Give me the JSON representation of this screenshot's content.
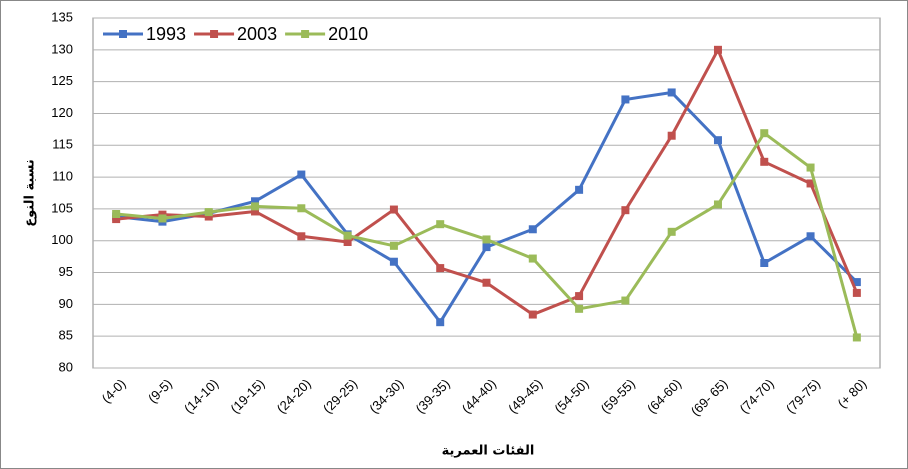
{
  "chart_data": {
    "type": "line",
    "xlabel": "الفئات العمرية",
    "ylabel": "نسبة النوع",
    "categories": [
      "(4-0)",
      "(9-5)",
      "(14-10)",
      "(19-15)",
      "(24-20)",
      "(29-25)",
      "(34-30)",
      "(39-35)",
      "(44-40)",
      "(49-45)",
      "(54-50)",
      "(59-55)",
      "(64-60)",
      "(69- 65)",
      "(74-70)",
      "(79-75)",
      "(+ 80)"
    ],
    "series": [
      {
        "name": "1993",
        "color": "#4472c4",
        "values": [
          103.8,
          103,
          104.3,
          106.2,
          110.4,
          101,
          96.7,
          87.2,
          99,
          101.8,
          108,
          122.2,
          123.3,
          115.8,
          96.5,
          100.7,
          93.5
        ]
      },
      {
        "name": "2003",
        "color": "#c0504d",
        "values": [
          103.4,
          104.1,
          103.8,
          104.6,
          100.7,
          99.8,
          104.9,
          95.7,
          93.4,
          88.4,
          91.3,
          104.8,
          116.5,
          130,
          112.4,
          109,
          91.8
        ]
      },
      {
        "name": "2010",
        "color": "#9bbb59",
        "values": [
          104.2,
          103.5,
          104.5,
          105.4,
          105.1,
          100.8,
          99.2,
          102.6,
          100.2,
          97.2,
          89.3,
          90.6,
          101.4,
          105.7,
          116.9,
          111.5,
          84.8
        ]
      }
    ],
    "ylim": [
      80,
      135
    ],
    "yticks": [
      80,
      85,
      90,
      95,
      100,
      105,
      110,
      115,
      120,
      125,
      130,
      135
    ],
    "grid": true,
    "legend": "upper left"
  }
}
